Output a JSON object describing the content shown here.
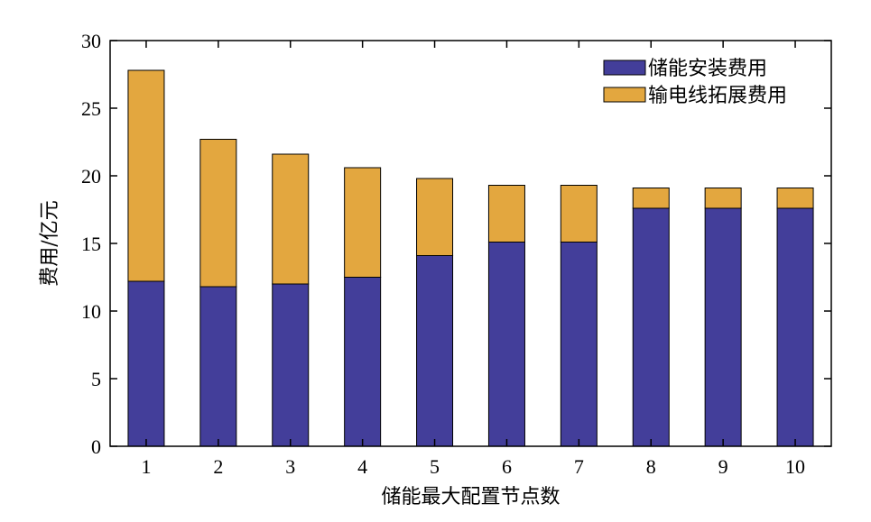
{
  "chart_data": {
    "type": "bar",
    "stacked": true,
    "categories": [
      "1",
      "2",
      "3",
      "4",
      "5",
      "6",
      "7",
      "8",
      "9",
      "10"
    ],
    "series": [
      {
        "name": "储能安装费用",
        "color": "#433e9a",
        "values": [
          12.2,
          11.8,
          12.0,
          12.5,
          14.1,
          15.1,
          15.1,
          17.6,
          17.6,
          17.6
        ]
      },
      {
        "name": "输电线拓展费用",
        "color": "#e3a73f",
        "values": [
          15.6,
          10.9,
          9.6,
          8.1,
          5.7,
          4.2,
          4.2,
          1.5,
          1.5,
          1.5
        ]
      }
    ],
    "xlabel": "储能最大配置节点数",
    "ylabel": "费用/亿元",
    "ylim": [
      0,
      30
    ],
    "yticks": [
      0,
      5,
      10,
      15,
      20,
      25,
      30
    ],
    "legend_position": "top-right",
    "grid": false
  }
}
